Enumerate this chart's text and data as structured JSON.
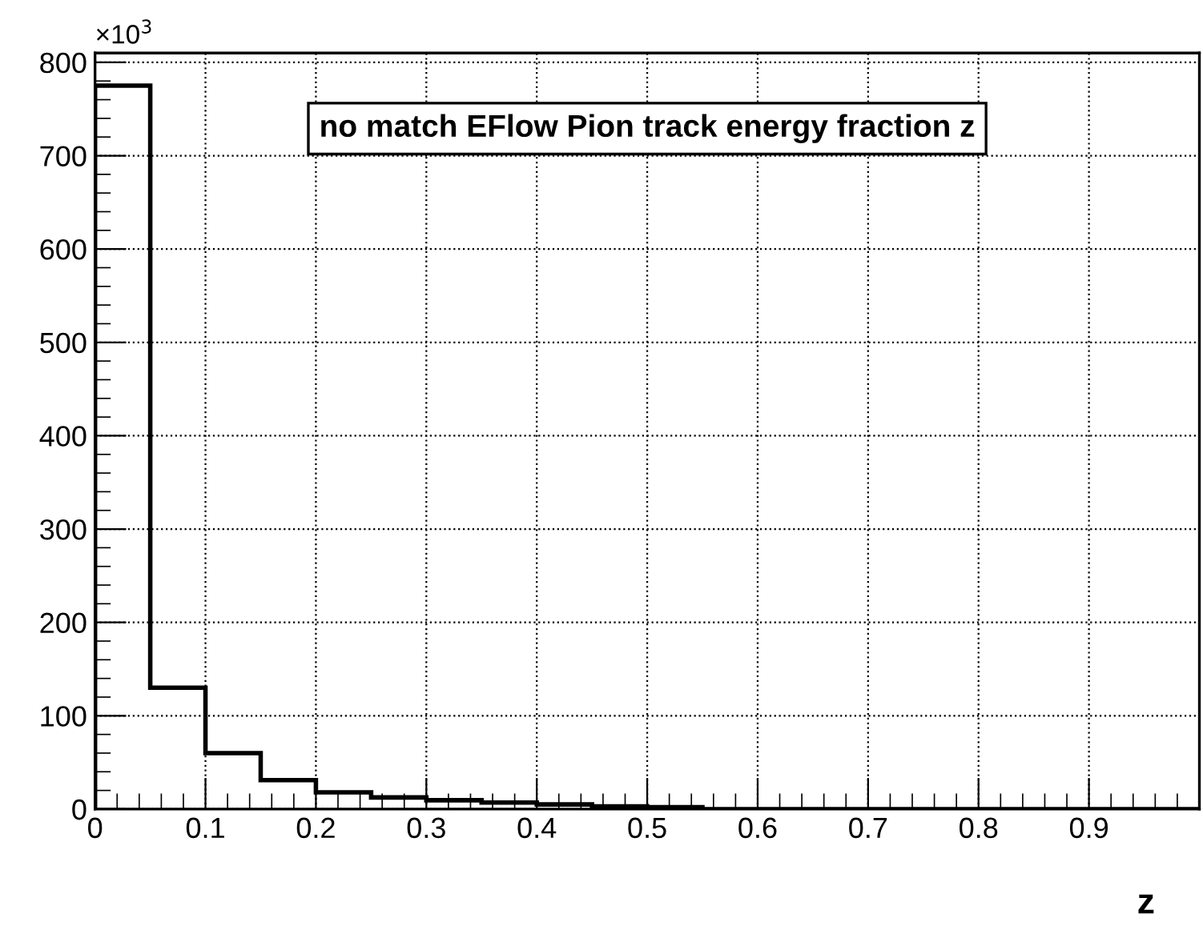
{
  "chart_data": {
    "type": "histogram",
    "title": "no match EFlow Pion track energy fraction z",
    "xlabel": "z",
    "annotations": [
      "×10$^{3}$"
    ],
    "bins": [
      0,
      0.05,
      0.1,
      0.15,
      0.2,
      0.25,
      0.3,
      0.35,
      0.4,
      0.45,
      0.5,
      0.55,
      0.6,
      0.65,
      0.7,
      0.75,
      0.8,
      0.85,
      0.9,
      0.95,
      1.0
    ],
    "values": [
      775,
      130,
      60,
      31,
      18,
      12.5,
      9.5,
      7,
      5,
      3,
      2,
      0,
      0,
      0,
      0,
      0,
      0,
      0,
      0,
      0
    ],
    "color": "#000000",
    "xlim": [
      0,
      1
    ],
    "xticks": [
      0,
      0.1,
      0.2,
      0.3,
      0.4,
      0.5,
      0.6,
      0.7,
      0.8,
      0.9
    ],
    "ylim": [
      0,
      810
    ],
    "yticks": [
      0,
      100,
      200,
      300,
      400,
      500,
      600,
      700,
      800
    ],
    "grid": true,
    "legend": false
  }
}
